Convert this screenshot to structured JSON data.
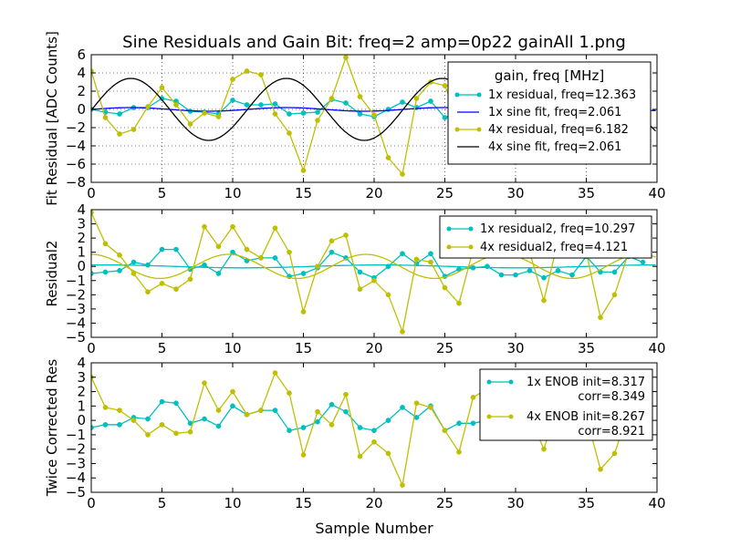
{
  "title": "Sine Residuals and Gain Bit: freq=2 amp=0p22 gainAll 1.png",
  "xlabel": "Sample Number",
  "colors": {
    "one_x": "#00bfbf",
    "four_x": "#bfbf00",
    "sine1x": "#0000ff",
    "sine4x": "#000000"
  },
  "chart_data": [
    {
      "type": "line",
      "ylabel": "Fit Residual [ADC Counts]",
      "xlim": [
        0,
        40
      ],
      "ylim": [
        -8,
        6
      ],
      "xticks": [
        "0",
        "5",
        "10",
        "15",
        "20",
        "25",
        "30",
        "35",
        "40"
      ],
      "yticks": [
        "6",
        "4",
        "2",
        "0",
        "−2",
        "−4",
        "−6",
        "−8"
      ],
      "grid": true,
      "legend_title": "gain, freq [MHz]",
      "series": [
        {
          "name": "1x residual, freq=12.363",
          "color": "#00bfbf",
          "markers": true,
          "values": [
            0.0,
            -0.3,
            -0.5,
            0.2,
            0.2,
            1.2,
            0.9,
            -0.2,
            -0.3,
            -0.5,
            1.0,
            0.5,
            0.5,
            0.6,
            -0.5,
            -0.4,
            -0.3,
            1.1,
            0.7,
            -0.5,
            -0.8,
            0.0,
            0.8,
            0.2,
            0.9,
            -0.9,
            -0.2,
            -0.1,
            0.0,
            -0.6,
            -0.6,
            -0.4,
            -0.9,
            -0.4,
            -0.7,
            0.8,
            -0.5,
            -0.5,
            0.8,
            0.3
          ]
        },
        {
          "name": "1x sine fit, freq=2.061",
          "color": "#0000ff",
          "markers": false,
          "sine": true,
          "amplitude": 0.2,
          "phase_sample": 13.8,
          "freq_cycles_per_sample": 0.0909
        },
        {
          "name": "4x residual, freq=6.182",
          "color": "#bfbf00",
          "markers": true,
          "values": [
            4.2,
            -0.9,
            -2.7,
            -2.2,
            0.3,
            2.4,
            0.5,
            -1.6,
            -0.4,
            -0.8,
            3.3,
            4.2,
            3.8,
            -0.5,
            -2.6,
            -6.7,
            -1.2,
            1.2,
            5.7,
            1.4,
            -0.6,
            -5.3,
            -7.1,
            1.2,
            3.0,
            2.6,
            -1.0,
            -2.9,
            -0.6,
            3.0,
            2.0,
            -0.7,
            -3.2,
            -1.6,
            2.5,
            4.2,
            -1.0,
            -3.0,
            -1.5,
            1.2
          ]
        },
        {
          "name": "4x sine fit, freq=2.061",
          "color": "#000000",
          "markers": false,
          "sine": true,
          "amplitude": 3.4,
          "phase_sample": 13.8,
          "freq_cycles_per_sample": 0.0909
        }
      ]
    },
    {
      "type": "line",
      "ylabel": "Residual2",
      "xlim": [
        0,
        40
      ],
      "ylim": [
        -5,
        4
      ],
      "xticks": [
        "0",
        "5",
        "10",
        "15",
        "20",
        "25",
        "30",
        "35",
        "40"
      ],
      "yticks": [
        "4",
        "3",
        "2",
        "1",
        "0",
        "−1",
        "−2",
        "−3",
        "−4",
        "−5"
      ],
      "grid": false,
      "series": [
        {
          "name": "1x residual2, freq=10.297",
          "color": "#00bfbf",
          "markers": true,
          "values": [
            -0.5,
            -0.4,
            -0.3,
            0.3,
            0.1,
            1.2,
            1.2,
            -0.2,
            0.1,
            -0.5,
            1.0,
            0.4,
            0.6,
            0.6,
            -0.7,
            -0.5,
            -0.1,
            1.0,
            0.6,
            -0.4,
            -0.8,
            0.0,
            0.9,
            0.2,
            0.9,
            -0.7,
            -0.2,
            -0.1,
            0.0,
            -0.6,
            -0.6,
            -0.3,
            -0.8,
            -0.3,
            -0.6,
            0.7,
            -0.4,
            -0.4,
            0.7,
            0.3
          ]
        },
        {
          "name": "",
          "color": "#00bfbf",
          "markers": false,
          "sine": true,
          "amplitude": 0.1,
          "phase_sample": 1.0,
          "freq_cycles_per_sample": 0.0515
        },
        {
          "name": "4x residual2, freq=4.121",
          "color": "#bfbf00",
          "markers": true,
          "values": [
            3.8,
            1.6,
            0.8,
            -0.5,
            -1.8,
            -1.2,
            -1.6,
            -0.9,
            2.8,
            1.4,
            2.8,
            1.2,
            0.6,
            2.7,
            1.0,
            -3.2,
            0.0,
            1.8,
            2.2,
            -1.6,
            -1.0,
            -2.0,
            -4.6,
            0.5,
            0.3,
            -1.5,
            -2.6,
            1.2,
            2.8,
            2.5,
            2.2,
            1.0,
            -2.4,
            1.8,
            2.0,
            1.0,
            -3.6,
            -2.0,
            1.0,
            0.8
          ]
        },
        {
          "name": "",
          "color": "#bfbf00",
          "markers": false,
          "sine": true,
          "amplitude": 0.85,
          "phase_sample": 0.0,
          "freq_cycles_per_sample": 0.103
        }
      ]
    },
    {
      "type": "line",
      "ylabel": "Twice Corrected Res",
      "xlim": [
        0,
        40
      ],
      "ylim": [
        -5,
        4
      ],
      "xticks": [
        "0",
        "5",
        "10",
        "15",
        "20",
        "25",
        "30",
        "35",
        "40"
      ],
      "yticks": [
        "4",
        "3",
        "2",
        "1",
        "0",
        "−1",
        "−2",
        "−3",
        "−4",
        "−5"
      ],
      "grid": false,
      "series": [
        {
          "name": "1x ENOB init=8.317",
          "name2": "corr=8.349",
          "color": "#00bfbf",
          "markers": true,
          "values": [
            -0.5,
            -0.3,
            -0.3,
            0.2,
            0.1,
            1.3,
            1.2,
            -0.2,
            0.1,
            -0.4,
            1.0,
            0.4,
            0.7,
            0.7,
            -0.7,
            -0.5,
            -0.1,
            1.1,
            0.6,
            -0.5,
            -0.7,
            0.0,
            0.9,
            0.2,
            1.0,
            -0.7,
            -0.2,
            -0.2,
            0.0,
            -0.6,
            -0.6,
            -0.3,
            -0.8,
            -0.3,
            -0.6,
            0.7,
            -0.4,
            -0.4,
            0.7,
            0.3
          ]
        },
        {
          "name": "4x ENOB init=8.267",
          "name2": "corr=8.921",
          "color": "#bfbf00",
          "markers": true,
          "values": [
            3.0,
            0.9,
            0.7,
            0.0,
            -1.0,
            -0.3,
            -0.9,
            -0.8,
            2.6,
            0.7,
            2.0,
            0.4,
            0.7,
            3.3,
            1.9,
            -2.4,
            0.6,
            -0.3,
            1.8,
            -2.5,
            -1.5,
            -2.3,
            -4.5,
            1.2,
            0.9,
            -0.7,
            -2.2,
            1.6,
            2.2,
            1.5,
            1.4,
            0.3,
            -2.0,
            1.2,
            1.5,
            0.3,
            -3.4,
            -2.3,
            0.6,
            0.5
          ]
        }
      ]
    }
  ]
}
